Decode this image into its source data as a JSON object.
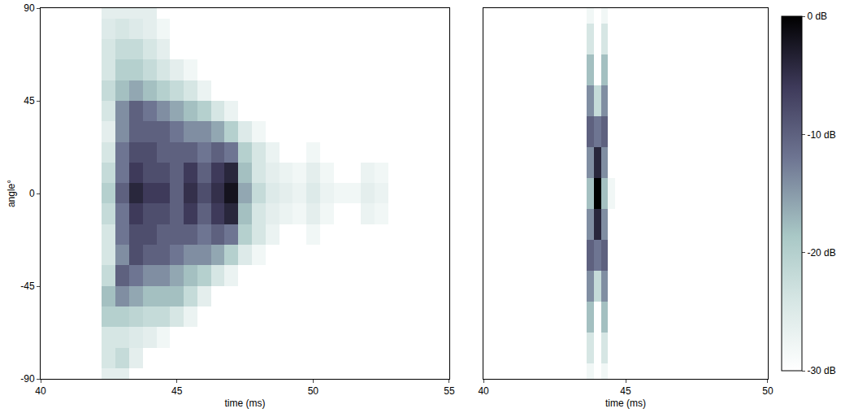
{
  "chart_data": [
    {
      "type": "heatmap",
      "x_label": "time (ms)",
      "y_label": "angle°",
      "xlim": [
        40,
        55
      ],
      "ylim": [
        -90,
        90
      ],
      "xticks": [
        40,
        45,
        50,
        55
      ],
      "yticks": [
        -90,
        -45,
        0,
        45,
        90
      ],
      "zlim": [
        -30,
        0
      ],
      "x": [
        40,
        40.5,
        41,
        41.5,
        42,
        42.5,
        43,
        43.5,
        44,
        44.5,
        45,
        45.5,
        46,
        46.5,
        47,
        47.5,
        48,
        48.5,
        49,
        49.5,
        50,
        50.5,
        51,
        51.5,
        52,
        52.5,
        53,
        53.5,
        54,
        54.5,
        55
      ],
      "y": [
        -90,
        -80,
        -70,
        -60,
        -50,
        -40,
        -30,
        -20,
        -10,
        0,
        10,
        20,
        30,
        40,
        50,
        60,
        70,
        80,
        90
      ],
      "z": [
        [
          -30,
          -30,
          -30,
          -30,
          -30,
          -26,
          -26,
          -30,
          -30,
          -30,
          -30,
          -30,
          -30,
          -30,
          -30,
          -30,
          -30,
          -30,
          -30,
          -30,
          -30,
          -30,
          -30,
          -30,
          -30,
          -30,
          -30,
          -30,
          -30,
          -30,
          -30
        ],
        [
          -30,
          -30,
          -30,
          -30,
          -30,
          -24,
          -22,
          -26,
          -30,
          -30,
          -30,
          -30,
          -30,
          -30,
          -30,
          -30,
          -30,
          -30,
          -30,
          -30,
          -30,
          -30,
          -30,
          -30,
          -30,
          -30,
          -30,
          -30,
          -30,
          -30,
          -30
        ],
        [
          -30,
          -30,
          -30,
          -30,
          -30,
          -24,
          -24,
          -25,
          -26,
          -28,
          -30,
          -30,
          -30,
          -30,
          -30,
          -30,
          -30,
          -30,
          -30,
          -30,
          -30,
          -30,
          -30,
          -30,
          -30,
          -30,
          -30,
          -30,
          -30,
          -30,
          -30
        ],
        [
          -30,
          -30,
          -30,
          -30,
          -30,
          -20,
          -20,
          -21,
          -22,
          -22,
          -24,
          -27,
          -30,
          -30,
          -30,
          -30,
          -30,
          -30,
          -30,
          -30,
          -30,
          -30,
          -30,
          -30,
          -30,
          -30,
          -30,
          -30,
          -30,
          -30,
          -30
        ],
        [
          -30,
          -30,
          -30,
          -30,
          -30,
          -18,
          -14,
          -16,
          -18,
          -18,
          -18,
          -22,
          -26,
          -30,
          -30,
          -30,
          -30,
          -30,
          -30,
          -30,
          -30,
          -30,
          -30,
          -30,
          -30,
          -30,
          -30,
          -30,
          -30,
          -30,
          -30
        ],
        [
          -30,
          -30,
          -30,
          -30,
          -30,
          -22,
          -10,
          -12,
          -14,
          -14,
          -16,
          -18,
          -20,
          -24,
          -27,
          -30,
          -30,
          -30,
          -30,
          -30,
          -30,
          -30,
          -30,
          -30,
          -30,
          -30,
          -30,
          -30,
          -30,
          -30,
          -30
        ],
        [
          -30,
          -30,
          -30,
          -30,
          -30,
          -24,
          -14,
          -8,
          -10,
          -10,
          -12,
          -14,
          -14,
          -16,
          -20,
          -25,
          -28,
          -30,
          -30,
          -30,
          -30,
          -30,
          -30,
          -30,
          -30,
          -30,
          -30,
          -30,
          -30,
          -30,
          -30
        ],
        [
          -30,
          -30,
          -30,
          -30,
          -30,
          -24,
          -12,
          -8,
          -8,
          -10,
          -10,
          -10,
          -12,
          -10,
          -12,
          -20,
          -24,
          -27,
          -30,
          -30,
          -28,
          -30,
          -30,
          -30,
          -30,
          -30,
          -30,
          -30,
          -30,
          -30,
          -30
        ],
        [
          -30,
          -30,
          -30,
          -30,
          -30,
          -22,
          -12,
          -6,
          -8,
          -8,
          -10,
          -6,
          -10,
          -6,
          -4,
          -18,
          -24,
          -26,
          -27,
          -28,
          -26,
          -28,
          -30,
          -30,
          -27,
          -28,
          -30,
          -30,
          -30,
          -30,
          -30
        ],
        [
          -30,
          -30,
          -30,
          -30,
          -30,
          -20,
          -10,
          -4,
          -6,
          -6,
          -10,
          -5,
          -8,
          -5,
          -2,
          -16,
          -22,
          -25,
          -26,
          -27,
          -25,
          -27,
          -28,
          -28,
          -26,
          -27,
          -30,
          -30,
          -30,
          -30,
          -30
        ],
        [
          -30,
          -30,
          -30,
          -30,
          -30,
          -22,
          -12,
          -6,
          -8,
          -8,
          -10,
          -6,
          -10,
          -6,
          -4,
          -18,
          -24,
          -26,
          -27,
          -28,
          -26,
          -28,
          -30,
          -30,
          -27,
          -28,
          -30,
          -30,
          -30,
          -30,
          -30
        ],
        [
          -30,
          -30,
          -30,
          -30,
          -30,
          -24,
          -12,
          -8,
          -8,
          -10,
          -10,
          -10,
          -12,
          -10,
          -12,
          -20,
          -24,
          -27,
          -30,
          -30,
          -28,
          -30,
          -30,
          -30,
          -30,
          -30,
          -30,
          -30,
          -30,
          -30,
          -30
        ],
        [
          -30,
          -30,
          -30,
          -30,
          -30,
          -26,
          -14,
          -10,
          -10,
          -10,
          -12,
          -14,
          -14,
          -16,
          -20,
          -25,
          -28,
          -30,
          -30,
          -30,
          -30,
          -30,
          -30,
          -30,
          -30,
          -30,
          -30,
          -30,
          -30,
          -30,
          -30
        ],
        [
          -30,
          -30,
          -30,
          -30,
          -30,
          -24,
          -14,
          -10,
          -12,
          -14,
          -16,
          -18,
          -20,
          -24,
          -27,
          -30,
          -30,
          -30,
          -30,
          -30,
          -30,
          -30,
          -30,
          -30,
          -30,
          -30,
          -30,
          -30,
          -30,
          -30,
          -30
        ],
        [
          -30,
          -30,
          -30,
          -30,
          -30,
          -22,
          -18,
          -16,
          -18,
          -20,
          -22,
          -24,
          -27,
          -30,
          -30,
          -30,
          -30,
          -30,
          -30,
          -30,
          -30,
          -30,
          -30,
          -30,
          -30,
          -30,
          -30,
          -30,
          -30,
          -30,
          -30
        ],
        [
          -30,
          -30,
          -30,
          -30,
          -30,
          -24,
          -20,
          -20,
          -22,
          -24,
          -26,
          -28,
          -30,
          -30,
          -30,
          -30,
          -30,
          -30,
          -30,
          -30,
          -30,
          -30,
          -30,
          -30,
          -30,
          -30,
          -30,
          -30,
          -30,
          -30,
          -30
        ],
        [
          -30,
          -30,
          -30,
          -30,
          -30,
          -24,
          -22,
          -22,
          -24,
          -26,
          -30,
          -30,
          -30,
          -30,
          -30,
          -30,
          -30,
          -30,
          -30,
          -30,
          -30,
          -30,
          -30,
          -30,
          -30,
          -30,
          -30,
          -30,
          -30,
          -30,
          -30
        ],
        [
          -30,
          -30,
          -30,
          -30,
          -30,
          -25,
          -24,
          -25,
          -26,
          -28,
          -30,
          -30,
          -30,
          -30,
          -30,
          -30,
          -30,
          -30,
          -30,
          -30,
          -30,
          -30,
          -30,
          -30,
          -30,
          -30,
          -30,
          -30,
          -30,
          -30,
          -30
        ],
        [
          -30,
          -30,
          -30,
          -30,
          -30,
          -26,
          -26,
          -26,
          -26,
          -30,
          -30,
          -30,
          -30,
          -30,
          -30,
          -30,
          -30,
          -30,
          -30,
          -30,
          -30,
          -30,
          -30,
          -30,
          -30,
          -30,
          -30,
          -30,
          -30,
          -30,
          -30
        ]
      ]
    },
    {
      "type": "heatmap",
      "x_label": "time (ms)",
      "xlim": [
        40,
        50
      ],
      "ylim": [
        -90,
        90
      ],
      "xticks": [
        40,
        45,
        50
      ],
      "tick_labels": "x",
      "zlim": [
        -30,
        0
      ],
      "zticks": [
        {
          "value": 0,
          "label": "0 dB"
        },
        {
          "value": -10,
          "label": "-10 dB"
        },
        {
          "value": -20,
          "label": "-20 dB"
        },
        {
          "value": -30,
          "label": "-30 dB"
        }
      ],
      "x": [
        40,
        40.25,
        40.5,
        40.75,
        41,
        41.25,
        41.5,
        41.75,
        42,
        42.25,
        42.5,
        42.75,
        43,
        43.25,
        43.5,
        43.75,
        44,
        44.25,
        44.5,
        44.75,
        45,
        45.25,
        45.5,
        45.75,
        46,
        46.25,
        46.5,
        46.75,
        47,
        47.25,
        47.5,
        47.75,
        48,
        48.25,
        48.5,
        48.75,
        49,
        49.25,
        49.5,
        49.75,
        50
      ],
      "y": [
        -90,
        -75,
        -60,
        -45,
        -30,
        -15,
        0,
        15,
        30,
        45,
        60,
        75,
        90
      ],
      "z": [
        [
          -30,
          -30,
          -30,
          -30,
          -30,
          -30,
          -30,
          -30,
          -30,
          -30,
          -30,
          -30,
          -30,
          -30,
          -30,
          -28,
          -30,
          -28,
          -30,
          -30,
          -30,
          -30,
          -30,
          -30,
          -30,
          -30,
          -30,
          -30,
          -30,
          -30,
          -30,
          -30,
          -30,
          -30,
          -30,
          -30,
          -30,
          -30,
          -30,
          -30,
          -30
        ],
        [
          -30,
          -30,
          -30,
          -30,
          -30,
          -30,
          -30,
          -30,
          -30,
          -30,
          -30,
          -30,
          -30,
          -30,
          -30,
          -24,
          -30,
          -24,
          -30,
          -30,
          -30,
          -30,
          -30,
          -30,
          -30,
          -30,
          -30,
          -30,
          -30,
          -30,
          -30,
          -30,
          -30,
          -30,
          -30,
          -30,
          -30,
          -30,
          -30,
          -30,
          -30
        ],
        [
          -30,
          -30,
          -30,
          -30,
          -30,
          -30,
          -30,
          -30,
          -30,
          -30,
          -30,
          -30,
          -30,
          -30,
          -30,
          -18,
          -30,
          -18,
          -30,
          -30,
          -30,
          -30,
          -30,
          -30,
          -30,
          -30,
          -30,
          -30,
          -30,
          -30,
          -30,
          -30,
          -30,
          -30,
          -30,
          -30,
          -30,
          -30,
          -30,
          -30,
          -30
        ],
        [
          -30,
          -30,
          -30,
          -30,
          -30,
          -30,
          -30,
          -30,
          -30,
          -30,
          -30,
          -30,
          -30,
          -30,
          -30,
          -14,
          -22,
          -14,
          -30,
          -30,
          -30,
          -30,
          -30,
          -30,
          -30,
          -30,
          -30,
          -30,
          -30,
          -30,
          -30,
          -30,
          -30,
          -30,
          -30,
          -30,
          -30,
          -30,
          -30,
          -30,
          -30
        ],
        [
          -30,
          -30,
          -30,
          -30,
          -30,
          -30,
          -30,
          -30,
          -30,
          -30,
          -30,
          -30,
          -30,
          -30,
          -30,
          -10,
          -12,
          -10,
          -30,
          -30,
          -30,
          -30,
          -30,
          -30,
          -30,
          -30,
          -30,
          -30,
          -30,
          -30,
          -30,
          -30,
          -30,
          -30,
          -30,
          -30,
          -30,
          -30,
          -30,
          -30,
          -30
        ],
        [
          -30,
          -30,
          -30,
          -30,
          -30,
          -30,
          -30,
          -30,
          -30,
          -30,
          -30,
          -30,
          -30,
          -30,
          -30,
          -14,
          -4,
          -14,
          -30,
          -30,
          -30,
          -30,
          -30,
          -30,
          -30,
          -30,
          -30,
          -30,
          -30,
          -30,
          -30,
          -30,
          -30,
          -30,
          -30,
          -30,
          -30,
          -30,
          -30,
          -30,
          -30
        ],
        [
          -30,
          -30,
          -30,
          -30,
          -30,
          -30,
          -30,
          -30,
          -30,
          -30,
          -30,
          -30,
          -30,
          -30,
          -30,
          -18,
          0,
          -18,
          -28,
          -30,
          -30,
          -30,
          -30,
          -30,
          -30,
          -30,
          -30,
          -30,
          -30,
          -30,
          -30,
          -30,
          -30,
          -30,
          -30,
          -30,
          -30,
          -30,
          -30,
          -30,
          -30
        ],
        [
          -30,
          -30,
          -30,
          -30,
          -30,
          -30,
          -30,
          -30,
          -30,
          -30,
          -30,
          -30,
          -30,
          -30,
          -30,
          -14,
          -4,
          -14,
          -30,
          -30,
          -30,
          -30,
          -30,
          -30,
          -30,
          -30,
          -30,
          -30,
          -30,
          -30,
          -30,
          -30,
          -30,
          -30,
          -30,
          -30,
          -30,
          -30,
          -30,
          -30,
          -30
        ],
        [
          -30,
          -30,
          -30,
          -30,
          -30,
          -30,
          -30,
          -30,
          -30,
          -30,
          -30,
          -30,
          -30,
          -30,
          -30,
          -10,
          -12,
          -10,
          -30,
          -30,
          -30,
          -30,
          -30,
          -30,
          -30,
          -30,
          -30,
          -30,
          -30,
          -30,
          -30,
          -30,
          -30,
          -30,
          -30,
          -30,
          -30,
          -30,
          -30,
          -30,
          -30
        ],
        [
          -30,
          -30,
          -30,
          -30,
          -30,
          -30,
          -30,
          -30,
          -30,
          -30,
          -30,
          -30,
          -30,
          -30,
          -30,
          -14,
          -22,
          -14,
          -30,
          -30,
          -30,
          -30,
          -30,
          -30,
          -30,
          -30,
          -30,
          -30,
          -30,
          -30,
          -30,
          -30,
          -30,
          -30,
          -30,
          -30,
          -30,
          -30,
          -30,
          -30,
          -30
        ],
        [
          -30,
          -30,
          -30,
          -30,
          -30,
          -30,
          -30,
          -30,
          -30,
          -30,
          -30,
          -30,
          -30,
          -30,
          -30,
          -18,
          -30,
          -18,
          -30,
          -30,
          -30,
          -30,
          -30,
          -30,
          -30,
          -30,
          -30,
          -30,
          -30,
          -30,
          -30,
          -30,
          -30,
          -30,
          -30,
          -30,
          -30,
          -30,
          -30,
          -30,
          -30
        ],
        [
          -30,
          -30,
          -30,
          -30,
          -30,
          -30,
          -30,
          -30,
          -30,
          -30,
          -30,
          -30,
          -30,
          -30,
          -30,
          -24,
          -30,
          -24,
          -30,
          -30,
          -30,
          -30,
          -30,
          -30,
          -30,
          -30,
          -30,
          -30,
          -30,
          -30,
          -30,
          -30,
          -30,
          -30,
          -30,
          -30,
          -30,
          -30,
          -30,
          -30,
          -30
        ],
        [
          -30,
          -30,
          -30,
          -30,
          -30,
          -30,
          -30,
          -30,
          -30,
          -30,
          -30,
          -30,
          -30,
          -30,
          -30,
          -28,
          -30,
          -28,
          -30,
          -30,
          -30,
          -30,
          -30,
          -30,
          -30,
          -30,
          -30,
          -30,
          -30,
          -30,
          -30,
          -30,
          -30,
          -30,
          -30,
          -30,
          -30,
          -30,
          -30,
          -30,
          -30
        ]
      ]
    }
  ]
}
